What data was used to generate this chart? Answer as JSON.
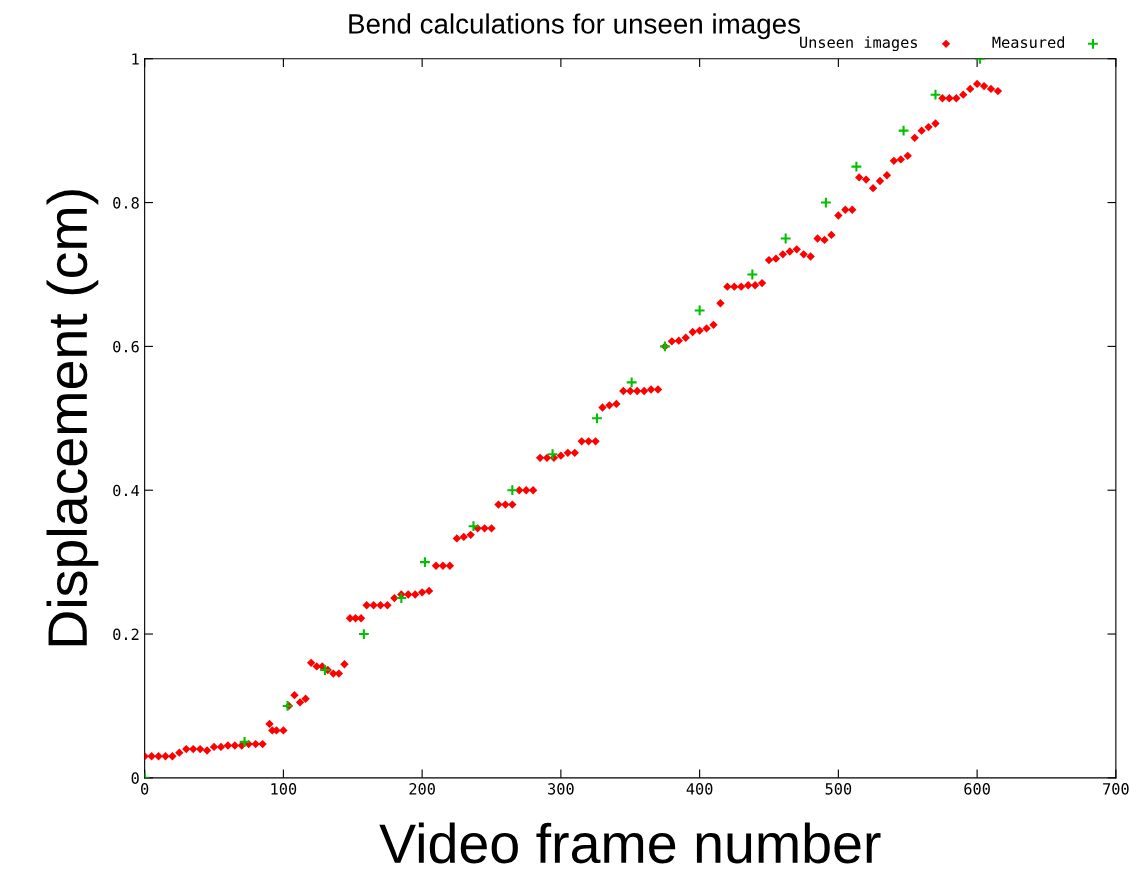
{
  "chart_data": {
    "type": "scatter",
    "title": "Bend calculations for unseen images",
    "xlabel": "Video frame number",
    "ylabel": "Displacement (cm)",
    "xlim": [
      0,
      700
    ],
    "xticks": [
      0,
      100,
      200,
      300,
      400,
      500,
      600,
      700
    ],
    "ylim": [
      0,
      1
    ],
    "yticks": [
      0,
      0.2,
      0.4,
      0.6,
      0.8,
      1
    ],
    "grid": false,
    "legend": "top right",
    "series": [
      {
        "name": "Unseen images",
        "color": "#ff0000",
        "marker": "diamond",
        "x": [
          0,
          5,
          10,
          15,
          20,
          25,
          30,
          35,
          40,
          45,
          50,
          55,
          60,
          65,
          70,
          75,
          80,
          85,
          90,
          92,
          95,
          100,
          104,
          108,
          112,
          116,
          120,
          124,
          128,
          132,
          136,
          140,
          144,
          148,
          152,
          156,
          160,
          165,
          170,
          175,
          180,
          185,
          190,
          195,
          200,
          205,
          210,
          215,
          220,
          225,
          230,
          235,
          240,
          245,
          250,
          255,
          260,
          265,
          270,
          275,
          280,
          285,
          290,
          295,
          300,
          305,
          310,
          315,
          320,
          325,
          330,
          335,
          340,
          345,
          350,
          355,
          360,
          365,
          370,
          375,
          380,
          385,
          390,
          395,
          400,
          405,
          410,
          415,
          420,
          425,
          430,
          435,
          440,
          445,
          450,
          455,
          460,
          465,
          470,
          475,
          480,
          485,
          490,
          495,
          500,
          505,
          510,
          515,
          520,
          525,
          530,
          535,
          540,
          545,
          550,
          555,
          560,
          565,
          570,
          575,
          580,
          585,
          590,
          595,
          600,
          605,
          610,
          615
        ],
        "values": [
          0.03,
          0.03,
          0.03,
          0.03,
          0.03,
          0.035,
          0.04,
          0.04,
          0.04,
          0.038,
          0.043,
          0.043,
          0.045,
          0.045,
          0.045,
          0.047,
          0.047,
          0.047,
          0.075,
          0.066,
          0.066,
          0.066,
          0.1,
          0.115,
          0.105,
          0.11,
          0.16,
          0.155,
          0.155,
          0.15,
          0.145,
          0.145,
          0.158,
          0.222,
          0.222,
          0.222,
          0.24,
          0.24,
          0.24,
          0.24,
          0.25,
          0.255,
          0.255,
          0.255,
          0.258,
          0.26,
          0.295,
          0.295,
          0.295,
          0.333,
          0.335,
          0.338,
          0.347,
          0.347,
          0.347,
          0.38,
          0.38,
          0.38,
          0.4,
          0.4,
          0.4,
          0.445,
          0.445,
          0.445,
          0.448,
          0.452,
          0.452,
          0.468,
          0.468,
          0.468,
          0.515,
          0.518,
          0.52,
          0.538,
          0.538,
          0.538,
          0.538,
          0.54,
          0.54,
          0.6,
          0.607,
          0.608,
          0.612,
          0.62,
          0.622,
          0.625,
          0.63,
          0.66,
          0.683,
          0.683,
          0.683,
          0.685,
          0.685,
          0.688,
          0.72,
          0.722,
          0.728,
          0.732,
          0.735,
          0.728,
          0.725,
          0.75,
          0.748,
          0.755,
          0.782,
          0.79,
          0.79,
          0.835,
          0.832,
          0.82,
          0.83,
          0.838,
          0.858,
          0.86,
          0.865,
          0.89,
          0.9,
          0.905,
          0.91,
          0.945,
          0.945,
          0.945,
          0.95,
          0.958,
          0.965,
          0.962,
          0.958,
          0.955
        ]
      },
      {
        "name": "Measured",
        "color": "#00c000",
        "marker": "cross",
        "x": [
          0,
          72,
          103,
          130,
          158,
          185,
          202,
          237,
          265,
          294,
          326,
          351,
          375,
          400,
          438,
          462,
          491,
          513,
          547,
          570,
          602
        ],
        "values": [
          0,
          0.05,
          0.1,
          0.15,
          0.2,
          0.25,
          0.3,
          0.35,
          0.4,
          0.45,
          0.5,
          0.55,
          0.6,
          0.65,
          0.7,
          0.75,
          0.8,
          0.85,
          0.9,
          0.95,
          1.0
        ]
      }
    ]
  }
}
